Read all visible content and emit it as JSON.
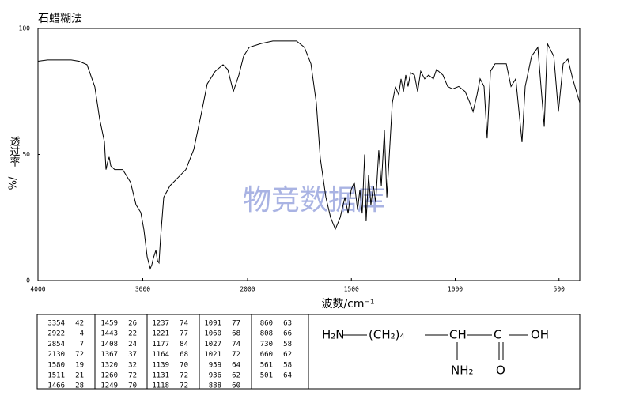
{
  "chart_data": {
    "type": "line",
    "title": "石蜡糊法",
    "watermark": "物竞数据库",
    "xlabel": "波数/cm⁻¹",
    "ylabel": [
      "透过率",
      "%/"
    ],
    "color": "#000000",
    "xlim": [
      4000,
      400
    ],
    "ylim": [
      0,
      100
    ],
    "xticks": [
      4000,
      3000,
      2000,
      1500,
      1000,
      500
    ],
    "yticks": [
      0,
      50,
      100
    ],
    "grid": false,
    "x": [
      4000,
      3909,
      3683,
      3608,
      3532,
      3457,
      3411,
      3381,
      3366,
      3351,
      3336,
      3321,
      3306,
      3268,
      3192,
      3117,
      3064,
      3019,
      2989,
      2958,
      2928,
      2913,
      2898,
      2875,
      2860,
      2845,
      2830,
      2800,
      2740,
      2664,
      2589,
      2513,
      2438,
      2385,
      2309,
      2234,
      2189,
      2136,
      2083,
      2038,
      1992,
      1935,
      1878,
      1764,
      1726,
      1695,
      1669,
      1650,
      1623,
      1600,
      1577,
      1554,
      1531,
      1516,
      1501,
      1486,
      1470,
      1459,
      1448,
      1436,
      1429,
      1417,
      1406,
      1394,
      1383,
      1368,
      1356,
      1341,
      1329,
      1318,
      1303,
      1288,
      1272,
      1261,
      1249,
      1238,
      1227,
      1215,
      1196,
      1181,
      1166,
      1147,
      1128,
      1105,
      1090,
      1059,
      1036,
      1013,
      983,
      952,
      929,
      914,
      895,
      880,
      861,
      846,
      830,
      808,
      754,
      731,
      708,
      678,
      663,
      632,
      602,
      571,
      556,
      525,
      503,
      480,
      457,
      434,
      400
    ],
    "values": [
      87,
      87.5,
      87.5,
      87,
      85.6,
      76.8,
      64,
      58,
      55,
      44,
      47,
      49,
      45.5,
      44,
      44,
      39,
      30,
      27,
      20,
      9.4,
      4.7,
      6.3,
      9,
      12,
      8,
      7,
      17,
      33,
      37.6,
      40.8,
      44,
      52,
      67,
      78,
      83,
      85.6,
      83.7,
      75,
      81.5,
      89,
      92.5,
      94,
      95,
      95,
      92.5,
      86,
      70.5,
      48.6,
      33,
      25,
      20.4,
      25,
      33,
      26.6,
      36,
      39,
      28,
      36,
      26.6,
      50,
      23.5,
      42,
      30,
      37.6,
      31,
      51.7,
      37.6,
      59.6,
      33,
      48.6,
      70.5,
      76.8,
      73.7,
      80,
      75,
      81.5,
      77,
      82.4,
      81.5,
      75,
      83,
      80,
      81.5,
      80,
      83.7,
      81.5,
      77,
      76,
      77,
      75,
      70.5,
      67,
      73.7,
      80,
      77,
      56.4,
      83,
      86,
      86,
      77,
      80,
      54.9,
      77,
      89,
      92.5,
      61,
      94,
      89,
      67,
      86,
      87.8,
      80,
      70.5
    ]
  },
  "peak_table": [
    [
      [
        3354,
        42
      ],
      [
        2922,
        4
      ],
      [
        2854,
        7
      ],
      [
        2130,
        72
      ],
      [
        1580,
        19
      ],
      [
        1511,
        21
      ],
      [
        1466,
        28
      ]
    ],
    [
      [
        1459,
        26
      ],
      [
        1443,
        22
      ],
      [
        1408,
        24
      ],
      [
        1367,
        37
      ],
      [
        1320,
        32
      ],
      [
        1260,
        72
      ],
      [
        1249,
        70
      ]
    ],
    [
      [
        1237,
        74
      ],
      [
        1221,
        77
      ],
      [
        1177,
        84
      ],
      [
        1164,
        68
      ],
      [
        1139,
        70
      ],
      [
        1131,
        72
      ],
      [
        1118,
        72
      ]
    ],
    [
      [
        1091,
        77
      ],
      [
        1060,
        68
      ],
      [
        1027,
        74
      ],
      [
        1021,
        72
      ],
      [
        959,
        64
      ],
      [
        936,
        62
      ],
      [
        888,
        60
      ]
    ],
    [
      [
        860,
        63
      ],
      [
        808,
        66
      ],
      [
        730,
        58
      ],
      [
        660,
        62
      ],
      [
        561,
        58
      ],
      [
        501,
        64
      ]
    ]
  ],
  "structure": {
    "main": [
      "H₂N",
      "(CH₂)₄",
      "CH",
      "C",
      "OH"
    ],
    "below": [
      "NH₂",
      "O"
    ]
  }
}
